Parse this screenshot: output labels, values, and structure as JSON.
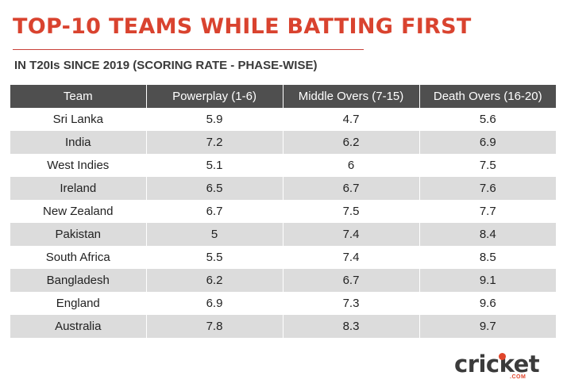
{
  "title": "TOP-10 TEAMS WHILE BATTING FIRST",
  "subtitle": "IN T20Is SINCE 2019 (SCORING RATE - PHASE-WISE)",
  "logo": {
    "word": "cricket",
    "suffix": ".COM"
  },
  "chart_data": {
    "type": "table",
    "columns": [
      "Team",
      "Powerplay (1-6)",
      "Middle Overs (7-15)",
      "Death Overs (16-20)"
    ],
    "rows": [
      [
        "Sri Lanka",
        "5.9",
        "4.7",
        "5.6"
      ],
      [
        "India",
        "7.2",
        "6.2",
        "6.9"
      ],
      [
        "West Indies",
        "5.1",
        "6",
        "7.5"
      ],
      [
        "Ireland",
        "6.5",
        "6.7",
        "7.6"
      ],
      [
        "New Zealand",
        "6.7",
        "7.5",
        "7.7"
      ],
      [
        "Pakistan",
        "5",
        "7.4",
        "8.4"
      ],
      [
        "South Africa",
        "5.5",
        "7.4",
        "8.5"
      ],
      [
        "Bangladesh",
        "6.2",
        "6.7",
        "9.1"
      ],
      [
        "England",
        "6.9",
        "7.3",
        "9.6"
      ],
      [
        "Australia",
        "7.8",
        "8.3",
        "9.7"
      ]
    ]
  },
  "colors": {
    "title": "#d9432f",
    "header_bg": "#4f4f4f",
    "stripe": "#dcdcdc",
    "logo_accent": "#e0452b"
  }
}
